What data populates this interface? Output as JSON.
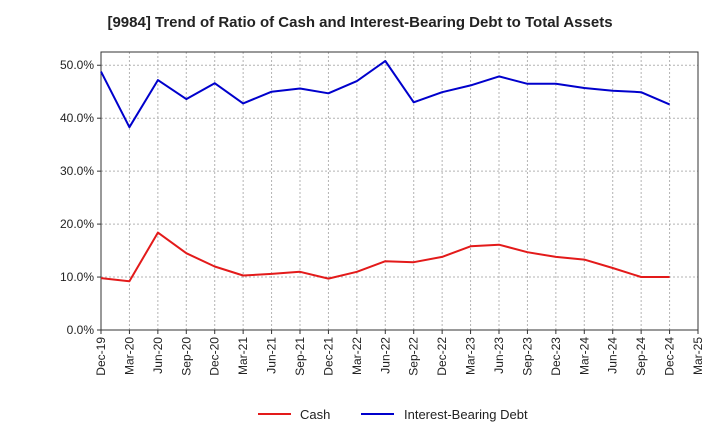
{
  "chart_data": {
    "type": "line",
    "title": "[9984]  Trend of Ratio of Cash and Interest-Bearing Debt to Total Assets",
    "xlabel": "",
    "ylabel": "",
    "categories": [
      "Dec-19",
      "Mar-20",
      "Jun-20",
      "Sep-20",
      "Dec-20",
      "Mar-21",
      "Jun-21",
      "Sep-21",
      "Dec-21",
      "Mar-22",
      "Jun-22",
      "Sep-22",
      "Dec-22",
      "Mar-23",
      "Jun-23",
      "Sep-23",
      "Dec-23",
      "Mar-24",
      "Jun-24",
      "Sep-24",
      "Dec-24",
      "Mar-25"
    ],
    "ylim": [
      0,
      52.5
    ],
    "yticks": [
      0,
      10,
      20,
      30,
      40,
      50
    ],
    "ytick_labels": [
      "0.0%",
      "10.0%",
      "20.0%",
      "30.0%",
      "40.0%",
      "50.0%"
    ],
    "grid": true,
    "legend_position": "bottom",
    "series": [
      {
        "name": "Cash",
        "color": "#e31a1a",
        "values": [
          9.8,
          9.2,
          18.4,
          14.5,
          12.0,
          10.3,
          10.6,
          11.0,
          9.7,
          11.0,
          13.0,
          12.8,
          13.8,
          15.8,
          16.1,
          14.7,
          13.8,
          13.3,
          11.7,
          10.0,
          10.0,
          null
        ]
      },
      {
        "name": "Interest-Bearing Debt",
        "color": "#0000cc",
        "values": [
          48.8,
          38.3,
          47.2,
          43.6,
          46.6,
          42.8,
          45.0,
          45.6,
          44.7,
          47.0,
          50.8,
          43.0,
          44.9,
          46.2,
          47.9,
          46.5,
          46.5,
          45.7,
          45.2,
          44.9,
          42.6,
          null
        ]
      }
    ]
  }
}
